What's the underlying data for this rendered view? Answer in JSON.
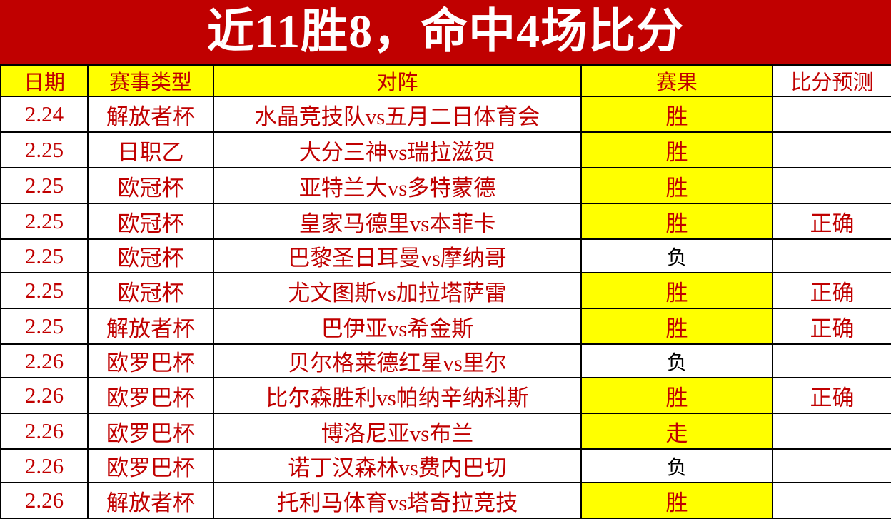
{
  "title": "近11胜8，命中4场比分",
  "colors": {
    "title_bg": "#c00000",
    "text": "#c00000",
    "highlight": "#ffff00"
  },
  "headers": [
    "日期",
    "赛事类型",
    "对阵",
    "赛果",
    "比分预测"
  ],
  "rows": [
    {
      "date": "2.24",
      "league": "解放者杯",
      "match": "水晶竞技队vs五月二日体育会",
      "result": "胜",
      "prediction": ""
    },
    {
      "date": "2.25",
      "league": "日职乙",
      "match": "大分三神vs瑞拉滋贺",
      "result": "胜",
      "prediction": ""
    },
    {
      "date": "2.25",
      "league": "欧冠杯",
      "match": "亚特兰大vs多特蒙德",
      "result": "胜",
      "prediction": ""
    },
    {
      "date": "2.25",
      "league": "欧冠杯",
      "match": "皇家马德里vs本菲卡",
      "result": "胜",
      "prediction": "正确"
    },
    {
      "date": "2.25",
      "league": "欧冠杯",
      "match": "巴黎圣日耳曼vs摩纳哥",
      "result": "负",
      "prediction": ""
    },
    {
      "date": "2.25",
      "league": "欧冠杯",
      "match": "尤文图斯vs加拉塔萨雷",
      "result": "胜",
      "prediction": "正确"
    },
    {
      "date": "2.25",
      "league": "解放者杯",
      "match": "巴伊亚vs希金斯",
      "result": "胜",
      "prediction": "正确"
    },
    {
      "date": "2.26",
      "league": "欧罗巴杯",
      "match": "贝尔格莱德红星vs里尔",
      "result": "负",
      "prediction": ""
    },
    {
      "date": "2.26",
      "league": "欧罗巴杯",
      "match": "比尔森胜利vs帕纳辛纳科斯",
      "result": "胜",
      "prediction": "正确"
    },
    {
      "date": "2.26",
      "league": "欧罗巴杯",
      "match": "博洛尼亚vs布兰",
      "result": "走",
      "prediction": ""
    },
    {
      "date": "2.26",
      "league": "欧罗巴杯",
      "match": "诺丁汉森林vs费内巴切",
      "result": "负",
      "prediction": ""
    },
    {
      "date": "2.26",
      "league": "解放者杯",
      "match": "托利马体育vs塔奇拉竞技",
      "result": "胜",
      "prediction": ""
    }
  ]
}
